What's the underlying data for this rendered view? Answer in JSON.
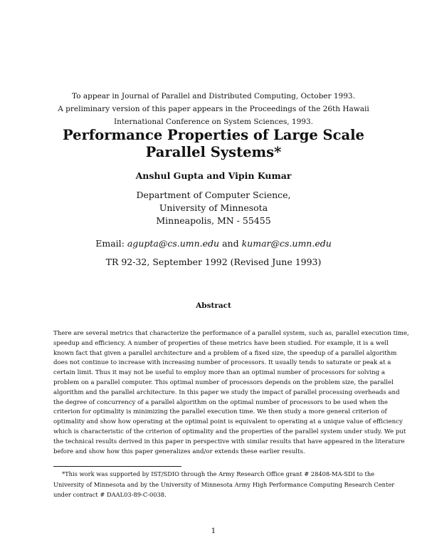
{
  "header_notes": [
    "To appear in Journal of Parallel and Distributed Computing, October 1993.",
    "A preliminary version of this paper appears in the Proceedings of the 26th Hawaii",
    "International Conference on System Sciences, 1993."
  ],
  "title_lines": [
    "Performance Properties of Large Scale",
    "Parallel Systems*"
  ],
  "authors": "Anshul Gupta and Vipin Kumar",
  "affiliation": [
    "Department of Computer Science,",
    "University of Minnesota",
    "Minneapolis, MN - 55455"
  ],
  "email_label": "Email:",
  "email1": "agupta@cs.umn.edu",
  "email_and": "and",
  "email2": "kumar@cs.umn.edu",
  "report": "TR 92-32, September 1992 (Revised June 1993)",
  "abstract_heading": "Abstract",
  "abstract_lines": [
    "There are several metrics that characterize the performance of a parallel system, such as, parallel execution time,",
    "speedup and efficiency. A number of properties of these metrics have been studied. For example, it is a well",
    "known fact that given a parallel architecture and a problem of a fixed size, the speedup of a parallel algorithm",
    "does not continue to increase with increasing number of processors. It usually tends to saturate or peak at a",
    "certain limit. Thus it may not be useful to employ more than an optimal number of processors for solving a",
    "problem on a parallel computer. This optimal number of processors depends on the problem size, the parallel",
    "algorithm and the parallel architecture. In this paper we study the impact of parallel processing overheads and",
    "the degree of concurrency of a parallel algorithm on the optimal number of processors to be used when the",
    "criterion for optimality is minimizing the parallel execution time. We then study a more general criterion of",
    "optimality and show how operating at the optimal point is equivalent to operating at a unique value of efficiency",
    "which is characteristic of the criterion of optimality and the properties of the parallel system under study. We put",
    "the technical results derived in this paper in perspective with similar results that have appeared in the literature",
    "before and show how this paper generalizes and/or extends these earlier results."
  ],
  "footnote_lines": [
    "*This work was supported by IST/SDIO through the Army Research Office grant # 28408-MA-SDI to the",
    "University of Minnesota and by the University of Minnesota Army High Performance Computing Research Center",
    "under contract # DAAL03-89-C-0038."
  ],
  "page_number": "1"
}
